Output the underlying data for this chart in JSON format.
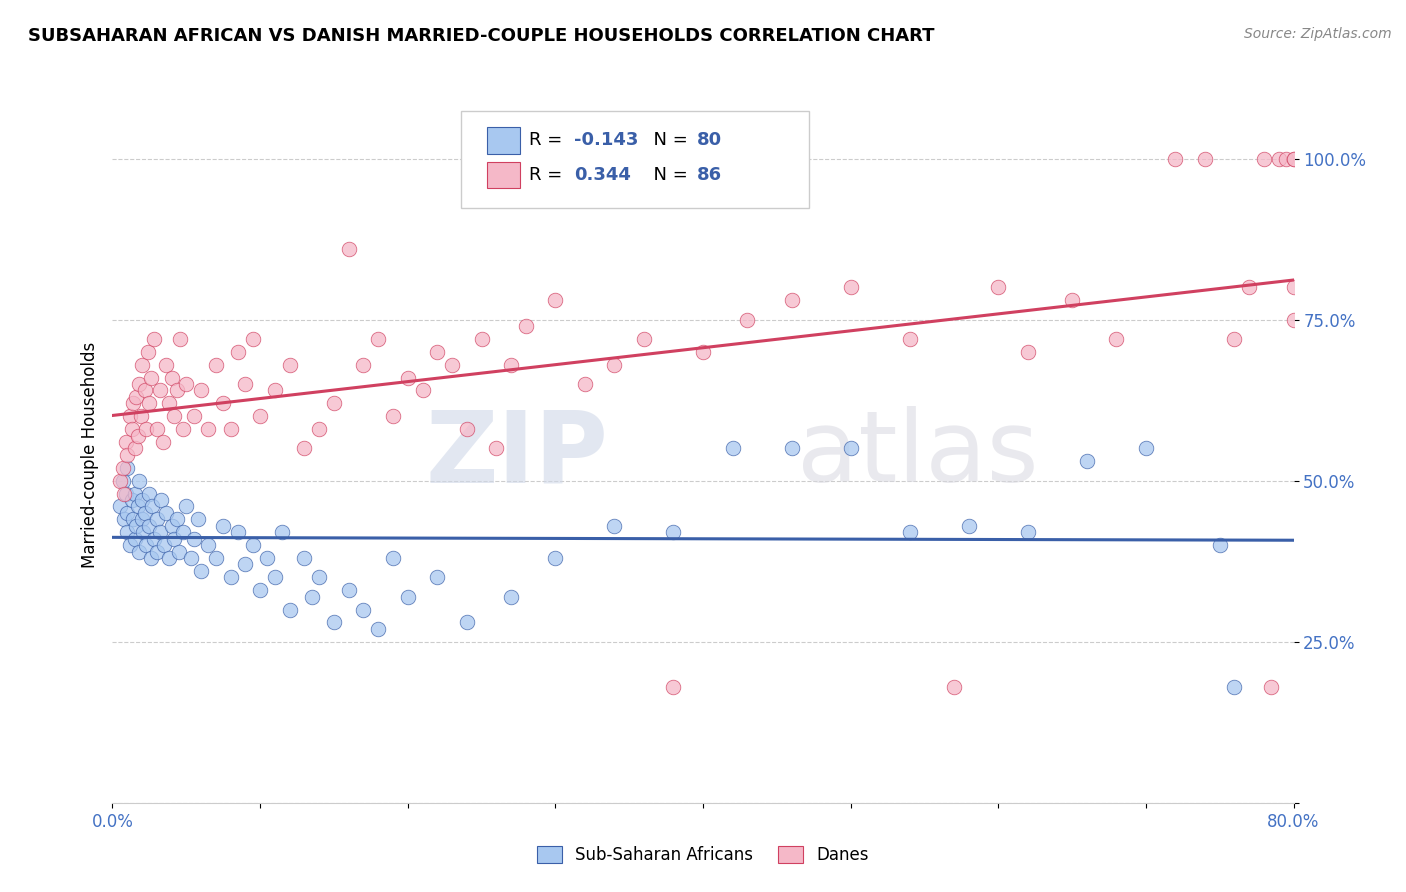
{
  "title": "SUBSAHARAN AFRICAN VS DANISH MARRIED-COUPLE HOUSEHOLDS CORRELATION CHART",
  "source": "Source: ZipAtlas.com",
  "ylabel": "Married-couple Households",
  "xlim": [
    0.0,
    0.8
  ],
  "ylim": [
    0.0,
    1.08
  ],
  "blue_R": "-0.143",
  "blue_N": "80",
  "pink_R": "0.344",
  "pink_N": "86",
  "blue_color": "#A8C8F0",
  "pink_color": "#F5B8C8",
  "blue_line_color": "#3A5FA8",
  "pink_line_color": "#D04060",
  "legend_label_blue": "Sub-Saharan Africans",
  "legend_label_pink": "Danes",
  "watermark_zip": "ZIP",
  "watermark_atlas": "atlas",
  "background_color": "#FFFFFF",
  "blue_scatter_x": [
    0.005,
    0.007,
    0.008,
    0.009,
    0.01,
    0.01,
    0.01,
    0.012,
    0.013,
    0.014,
    0.015,
    0.015,
    0.016,
    0.017,
    0.018,
    0.018,
    0.02,
    0.02,
    0.021,
    0.022,
    0.023,
    0.025,
    0.025,
    0.026,
    0.027,
    0.028,
    0.03,
    0.03,
    0.032,
    0.033,
    0.035,
    0.036,
    0.038,
    0.04,
    0.042,
    0.044,
    0.045,
    0.048,
    0.05,
    0.053,
    0.055,
    0.058,
    0.06,
    0.065,
    0.07,
    0.075,
    0.08,
    0.085,
    0.09,
    0.095,
    0.1,
    0.105,
    0.11,
    0.115,
    0.12,
    0.13,
    0.135,
    0.14,
    0.15,
    0.16,
    0.17,
    0.18,
    0.19,
    0.2,
    0.22,
    0.24,
    0.27,
    0.3,
    0.34,
    0.38,
    0.42,
    0.46,
    0.5,
    0.54,
    0.58,
    0.62,
    0.66,
    0.7,
    0.75,
    0.76
  ],
  "blue_scatter_y": [
    0.46,
    0.5,
    0.44,
    0.48,
    0.42,
    0.45,
    0.52,
    0.4,
    0.47,
    0.44,
    0.41,
    0.48,
    0.43,
    0.46,
    0.39,
    0.5,
    0.44,
    0.47,
    0.42,
    0.45,
    0.4,
    0.43,
    0.48,
    0.38,
    0.46,
    0.41,
    0.44,
    0.39,
    0.42,
    0.47,
    0.4,
    0.45,
    0.38,
    0.43,
    0.41,
    0.44,
    0.39,
    0.42,
    0.46,
    0.38,
    0.41,
    0.44,
    0.36,
    0.4,
    0.38,
    0.43,
    0.35,
    0.42,
    0.37,
    0.4,
    0.33,
    0.38,
    0.35,
    0.42,
    0.3,
    0.38,
    0.32,
    0.35,
    0.28,
    0.33,
    0.3,
    0.27,
    0.38,
    0.32,
    0.35,
    0.28,
    0.32,
    0.38,
    0.43,
    0.42,
    0.55,
    0.55,
    0.55,
    0.42,
    0.43,
    0.42,
    0.53,
    0.55,
    0.4,
    0.18
  ],
  "pink_scatter_x": [
    0.005,
    0.007,
    0.008,
    0.009,
    0.01,
    0.012,
    0.013,
    0.014,
    0.015,
    0.016,
    0.017,
    0.018,
    0.019,
    0.02,
    0.022,
    0.023,
    0.024,
    0.025,
    0.026,
    0.028,
    0.03,
    0.032,
    0.034,
    0.036,
    0.038,
    0.04,
    0.042,
    0.044,
    0.046,
    0.048,
    0.05,
    0.055,
    0.06,
    0.065,
    0.07,
    0.075,
    0.08,
    0.085,
    0.09,
    0.095,
    0.1,
    0.11,
    0.12,
    0.13,
    0.14,
    0.15,
    0.16,
    0.17,
    0.18,
    0.19,
    0.2,
    0.21,
    0.22,
    0.23,
    0.24,
    0.25,
    0.26,
    0.27,
    0.28,
    0.3,
    0.32,
    0.34,
    0.36,
    0.38,
    0.4,
    0.43,
    0.46,
    0.5,
    0.54,
    0.57,
    0.6,
    0.62,
    0.65,
    0.68,
    0.72,
    0.74,
    0.76,
    0.77,
    0.78,
    0.785,
    0.79,
    0.795,
    0.8,
    0.8,
    0.8,
    0.8
  ],
  "pink_scatter_y": [
    0.5,
    0.52,
    0.48,
    0.56,
    0.54,
    0.6,
    0.58,
    0.62,
    0.55,
    0.63,
    0.57,
    0.65,
    0.6,
    0.68,
    0.64,
    0.58,
    0.7,
    0.62,
    0.66,
    0.72,
    0.58,
    0.64,
    0.56,
    0.68,
    0.62,
    0.66,
    0.6,
    0.64,
    0.72,
    0.58,
    0.65,
    0.6,
    0.64,
    0.58,
    0.68,
    0.62,
    0.58,
    0.7,
    0.65,
    0.72,
    0.6,
    0.64,
    0.68,
    0.55,
    0.58,
    0.62,
    0.86,
    0.68,
    0.72,
    0.6,
    0.66,
    0.64,
    0.7,
    0.68,
    0.58,
    0.72,
    0.55,
    0.68,
    0.74,
    0.78,
    0.65,
    0.68,
    0.72,
    0.18,
    0.7,
    0.75,
    0.78,
    0.8,
    0.72,
    0.18,
    0.8,
    0.7,
    0.78,
    0.72,
    1.0,
    1.0,
    0.72,
    0.8,
    1.0,
    0.18,
    1.0,
    1.0,
    0.8,
    1.0,
    1.0,
    0.75
  ]
}
